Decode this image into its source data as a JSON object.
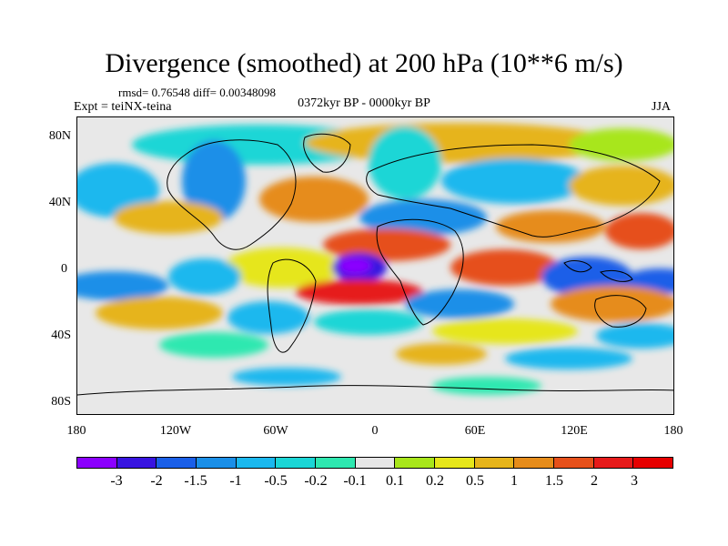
{
  "figure": {
    "title": "Divergence (smoothed) at 200 hPa (10**6 m/s)",
    "stats": "rmsd= 0.76548 diff= 0.00348098",
    "experiment": "Expt = teiNX-teina",
    "period": "0372kyr BP - 0000kyr BP",
    "season": "JJA"
  },
  "axes": {
    "lat_labels": [
      "80N",
      "40N",
      "0",
      "40S",
      "80S"
    ],
    "lon_labels": [
      "180",
      "120W",
      "60W",
      "0",
      "60E",
      "120E",
      "180"
    ]
  },
  "colorbar": {
    "labels": [
      "-3",
      "-2",
      "-1.5",
      "-1",
      "-0.5",
      "-0.2",
      "-0.1",
      "0.1",
      "0.2",
      "0.5",
      "1",
      "1.5",
      "2",
      "3"
    ],
    "colors": [
      "#8b00ff",
      "#3814e0",
      "#1a5fe8",
      "#1a8fe8",
      "#1ab8ee",
      "#1ad6d6",
      "#2ee8b0",
      "#e6e6e6",
      "#a8e61a",
      "#e6e61a",
      "#e6b41a",
      "#e68c1a",
      "#e6501a",
      "#e61a1a",
      "#e60000"
    ]
  }
}
